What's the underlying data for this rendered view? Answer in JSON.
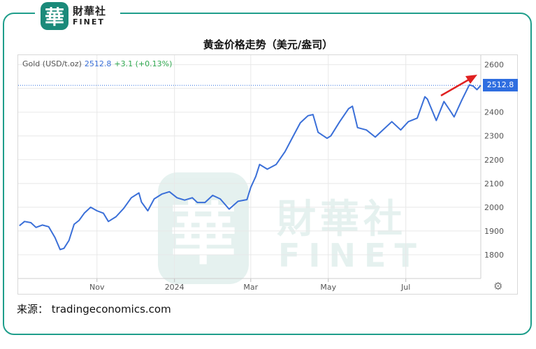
{
  "brand": {
    "seal_char": "華",
    "name_cn": "財華社",
    "name_en": "FINET"
  },
  "source_text": "来源： tradingeconomics.com",
  "colors": {
    "line": "#3a6fd8",
    "change": "#2fa84f",
    "tag": "#2f6ee0",
    "arrow": "#e02020",
    "frame": "#1f9e8b"
  },
  "chart_data": {
    "type": "line",
    "title": "黄金价格走势（美元/盎司）",
    "legend": {
      "name": "Gold (USD/t.oz)",
      "price": "2512.8",
      "change": "+3.1 (+0.13%)",
      "placement": "top-left"
    },
    "last_value_label": "2512.8",
    "ylim": [
      1700,
      2640
    ],
    "yticks": [
      1800,
      1900,
      2000,
      2100,
      2200,
      2300,
      2400,
      2500,
      2600
    ],
    "ytick_labels": [
      "1800",
      "1900",
      "2000",
      "2100",
      "2200",
      "2300",
      "2400",
      "2500",
      "2600"
    ],
    "x_range": [
      "2023-08-31",
      "2024-08-29"
    ],
    "xticks": [
      {
        "date": "2023-11-01",
        "label": "Nov"
      },
      {
        "date": "2024-01-01",
        "label": "2024"
      },
      {
        "date": "2024-03-01",
        "label": "Mar"
      },
      {
        "date": "2024-05-01",
        "label": "May"
      },
      {
        "date": "2024-07-01",
        "label": "Jul"
      }
    ],
    "grid": true,
    "series": [
      {
        "points": [
          [
            "2023-09-01",
            1922
          ],
          [
            "2023-09-05",
            1940
          ],
          [
            "2023-09-10",
            1935
          ],
          [
            "2023-09-14",
            1915
          ],
          [
            "2023-09-19",
            1925
          ],
          [
            "2023-09-24",
            1918
          ],
          [
            "2023-09-29",
            1872
          ],
          [
            "2023-10-03",
            1822
          ],
          [
            "2023-10-06",
            1827
          ],
          [
            "2023-10-10",
            1860
          ],
          [
            "2023-10-14",
            1928
          ],
          [
            "2023-10-18",
            1945
          ],
          [
            "2023-10-22",
            1975
          ],
          [
            "2023-10-27",
            2000
          ],
          [
            "2023-11-01",
            1985
          ],
          [
            "2023-11-06",
            1975
          ],
          [
            "2023-11-10",
            1940
          ],
          [
            "2023-11-16",
            1960
          ],
          [
            "2023-11-22",
            1995
          ],
          [
            "2023-11-28",
            2040
          ],
          [
            "2023-12-04",
            2060
          ],
          [
            "2023-12-06",
            2022
          ],
          [
            "2023-12-11",
            1985
          ],
          [
            "2023-12-16",
            2035
          ],
          [
            "2023-12-22",
            2055
          ],
          [
            "2023-12-28",
            2065
          ],
          [
            "2024-01-03",
            2040
          ],
          [
            "2024-01-09",
            2030
          ],
          [
            "2024-01-15",
            2040
          ],
          [
            "2024-01-19",
            2020
          ],
          [
            "2024-01-25",
            2020
          ],
          [
            "2024-01-31",
            2050
          ],
          [
            "2024-02-06",
            2035
          ],
          [
            "2024-02-13",
            1992
          ],
          [
            "2024-02-20",
            2025
          ],
          [
            "2024-02-27",
            2032
          ],
          [
            "2024-03-01",
            2083
          ],
          [
            "2024-03-05",
            2130
          ],
          [
            "2024-03-08",
            2180
          ],
          [
            "2024-03-14",
            2160
          ],
          [
            "2024-03-21",
            2180
          ],
          [
            "2024-03-28",
            2234
          ],
          [
            "2024-04-02",
            2285
          ],
          [
            "2024-04-09",
            2355
          ],
          [
            "2024-04-12",
            2370
          ],
          [
            "2024-04-15",
            2385
          ],
          [
            "2024-04-19",
            2390
          ],
          [
            "2024-04-23",
            2315
          ],
          [
            "2024-04-30",
            2290
          ],
          [
            "2024-05-03",
            2300
          ],
          [
            "2024-05-10",
            2360
          ],
          [
            "2024-05-17",
            2415
          ],
          [
            "2024-05-20",
            2425
          ],
          [
            "2024-05-24",
            2335
          ],
          [
            "2024-05-31",
            2325
          ],
          [
            "2024-06-07",
            2295
          ],
          [
            "2024-06-12",
            2320
          ],
          [
            "2024-06-20",
            2360
          ],
          [
            "2024-06-27",
            2325
          ],
          [
            "2024-07-03",
            2360
          ],
          [
            "2024-07-10",
            2375
          ],
          [
            "2024-07-16",
            2465
          ],
          [
            "2024-07-18",
            2455
          ],
          [
            "2024-07-25",
            2365
          ],
          [
            "2024-07-31",
            2445
          ],
          [
            "2024-08-05",
            2405
          ],
          [
            "2024-08-08",
            2380
          ],
          [
            "2024-08-14",
            2450
          ],
          [
            "2024-08-20",
            2515
          ],
          [
            "2024-08-23",
            2510
          ],
          [
            "2024-08-26",
            2495
          ],
          [
            "2024-08-29",
            2512.8
          ]
        ]
      }
    ]
  }
}
